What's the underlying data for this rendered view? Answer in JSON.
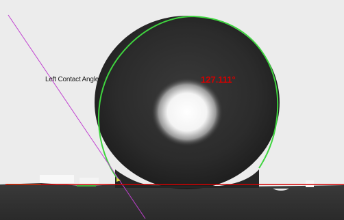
{
  "image": {
    "subject": "contact-angle-droplet",
    "colors": {
      "background": "#ececec",
      "droplet": "#2a2a2a",
      "fit_outline": "#40d040",
      "baseline": "#d40000",
      "tangent": "#c040d0",
      "angle_text": "#d40000"
    }
  },
  "labels": {
    "left_contact_angle": "Left Contact Angle=",
    "angle_value": "127.111°"
  }
}
